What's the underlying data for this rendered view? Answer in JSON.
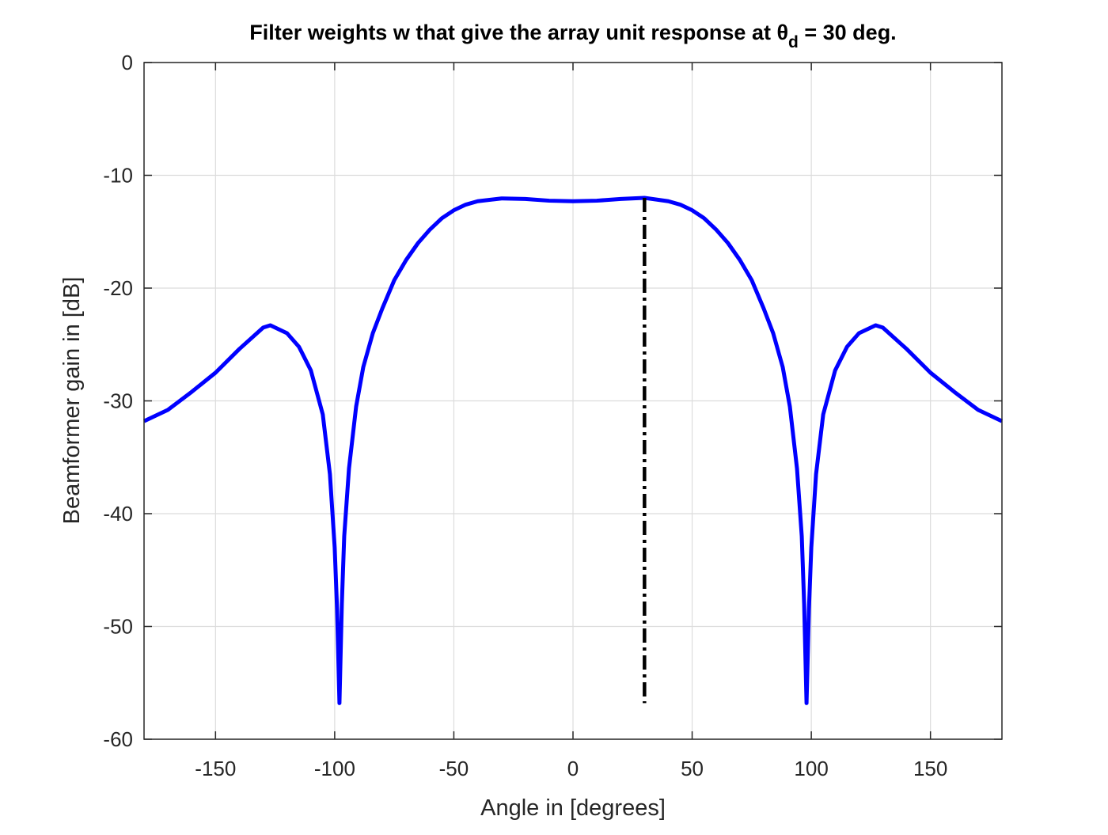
{
  "chart_data": {
    "type": "line",
    "title": [
      "Filter weights w that give the array unit response at θ",
      "d",
      " = 30 deg."
    ],
    "xlabel": "Angle in [degrees]",
    "ylabel": "Beamformer gain in [dB]",
    "xlim": [
      -180,
      180
    ],
    "xticks": [
      -150,
      -100,
      -50,
      0,
      50,
      100,
      150
    ],
    "ylim": [
      -60,
      0
    ],
    "yticks": [
      -60,
      -50,
      -40,
      -30,
      -20,
      -10,
      0
    ],
    "grid": true,
    "series": [
      {
        "color": "#0000ff",
        "style": "solid",
        "x": [
          -180,
          -170,
          -160,
          -150,
          -140,
          -130,
          -127,
          -120,
          -115,
          -110,
          -105,
          -102,
          -100,
          -99,
          -98,
          -97,
          -96,
          -94,
          -91,
          -88,
          -84,
          -80,
          -75,
          -70,
          -65,
          -60,
          -55,
          -50,
          -45,
          -40,
          -30,
          -20,
          -10,
          0,
          10,
          20,
          30,
          40,
          45,
          50,
          55,
          60,
          65,
          70,
          75,
          80,
          84,
          88,
          91,
          94,
          96,
          97,
          98,
          99,
          100,
          102,
          105,
          110,
          115,
          120,
          127,
          130,
          140,
          150,
          160,
          170,
          180
        ],
        "values": [
          -31.8,
          -30.8,
          -29.2,
          -27.5,
          -25.4,
          -23.5,
          -23.3,
          -24.0,
          -25.2,
          -27.3,
          -31.2,
          -36.5,
          -43,
          -48.5,
          -56.8,
          -48,
          -42,
          -36,
          -30.5,
          -27,
          -24,
          -21.8,
          -19.3,
          -17.5,
          -16,
          -14.8,
          -13.8,
          -13.1,
          -12.6,
          -12.3,
          -12.05,
          -12.1,
          -12.25,
          -12.3,
          -12.25,
          -12.1,
          -12.0,
          -12.3,
          -12.6,
          -13.1,
          -13.8,
          -14.8,
          -16,
          -17.5,
          -19.3,
          -21.8,
          -24,
          -27,
          -30.5,
          -36,
          -42,
          -48,
          -56.8,
          -48.5,
          -43,
          -36.5,
          -31.2,
          -27.3,
          -25.2,
          -24.0,
          -23.3,
          -23.5,
          -25.4,
          -27.5,
          -29.2,
          -30.8,
          -31.8
        ]
      },
      {
        "color": "#000000",
        "style": "dashdot",
        "x": [
          30,
          30
        ],
        "values": [
          -12.0,
          -56.8
        ]
      }
    ]
  }
}
